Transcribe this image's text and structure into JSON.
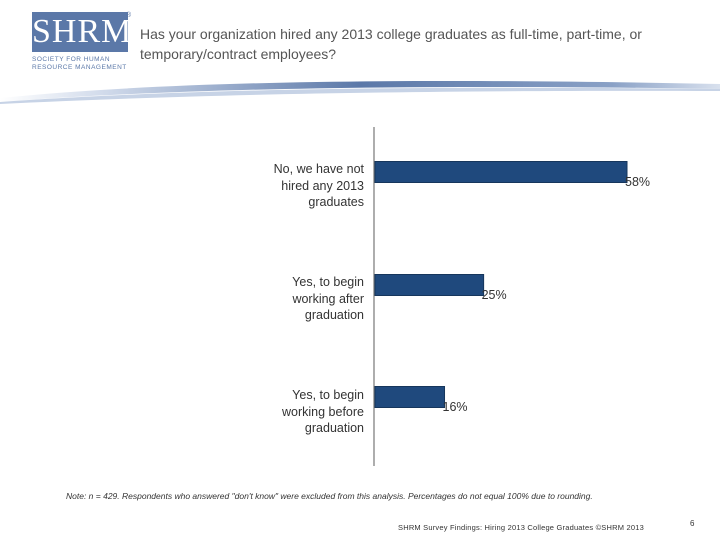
{
  "logo": {
    "wordmark": "SHRM",
    "registered": "®",
    "tagline_line1": "SOCIETY FOR HUMAN",
    "tagline_line2": "RESOURCE MANAGEMENT"
  },
  "header": {
    "title": "Has your organization hired any 2013 college graduates as full-time, part-time, or temporary/contract employees?"
  },
  "chart_data": {
    "type": "bar",
    "orientation": "horizontal",
    "categories": [
      "No, we have not hired any 2013 graduates",
      "Yes, to begin working after graduation",
      "Yes, to begin working before graduation"
    ],
    "category_lines": [
      [
        "No, we have not",
        "hired any 2013",
        "graduates"
      ],
      [
        "Yes, to begin",
        "working after",
        "graduation"
      ],
      [
        "Yes, to begin",
        "working before",
        "graduation"
      ]
    ],
    "values": [
      58,
      25,
      16
    ],
    "data_labels": [
      "58%",
      "25%",
      "16%"
    ],
    "xlim": [
      0,
      60
    ],
    "bar_color": "#1f497d",
    "grid": false
  },
  "note": "Note: n = 429. Respondents who answered \"don't know\" were excluded from this analysis. Percentages do not equal 100% due to rounding.",
  "footer": {
    "source": "SHRM Survey Findings: Hiring 2013 College Graduates ©SHRM 2013",
    "page_number": "6"
  }
}
